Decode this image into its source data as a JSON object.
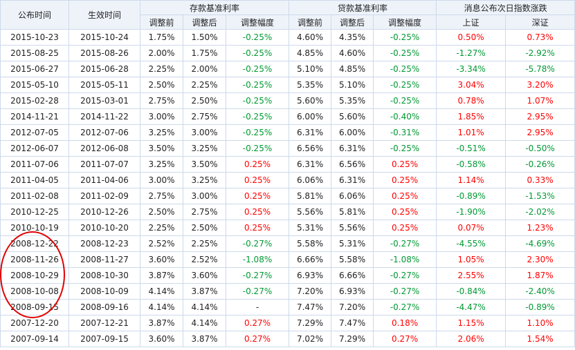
{
  "headers": {
    "announce_date": "公布时间",
    "effective_date": "生效时间",
    "deposit_group": "存款基准利率",
    "loan_group": "贷款基准利率",
    "index_group": "消息公布次日指数涨跌",
    "before": "调整前",
    "after": "调整后",
    "change": "调整幅度",
    "shanghai": "上证",
    "shenzhen": "深证"
  },
  "rows": [
    {
      "announce": "2015-10-23",
      "effective": "2015-10-24",
      "dep_before": "1.75%",
      "dep_after": "1.50%",
      "dep_change": "-0.25%",
      "loan_before": "4.60%",
      "loan_after": "4.35%",
      "loan_change": "-0.25%",
      "sh": "0.50%",
      "sz": "0.73%"
    },
    {
      "announce": "2015-08-25",
      "effective": "2015-08-26",
      "dep_before": "2.00%",
      "dep_after": "1.75%",
      "dep_change": "-0.25%",
      "loan_before": "4.85%",
      "loan_after": "4.60%",
      "loan_change": "-0.25%",
      "sh": "-1.27%",
      "sz": "-2.92%"
    },
    {
      "announce": "2015-06-27",
      "effective": "2015-06-28",
      "dep_before": "2.25%",
      "dep_after": "2.00%",
      "dep_change": "-0.25%",
      "loan_before": "5.10%",
      "loan_after": "4.85%",
      "loan_change": "-0.25%",
      "sh": "-3.34%",
      "sz": "-5.78%"
    },
    {
      "announce": "2015-05-10",
      "effective": "2015-05-11",
      "dep_before": "2.50%",
      "dep_after": "2.25%",
      "dep_change": "-0.25%",
      "loan_before": "5.35%",
      "loan_after": "5.10%",
      "loan_change": "-0.25%",
      "sh": "3.04%",
      "sz": "3.20%"
    },
    {
      "announce": "2015-02-28",
      "effective": "2015-03-01",
      "dep_before": "2.75%",
      "dep_after": "2.50%",
      "dep_change": "-0.25%",
      "loan_before": "5.60%",
      "loan_after": "5.35%",
      "loan_change": "-0.25%",
      "sh": "0.78%",
      "sz": "1.07%"
    },
    {
      "announce": "2014-11-21",
      "effective": "2014-11-22",
      "dep_before": "3.00%",
      "dep_after": "2.75%",
      "dep_change": "-0.25%",
      "loan_before": "6.00%",
      "loan_after": "5.60%",
      "loan_change": "-0.40%",
      "sh": "1.85%",
      "sz": "2.95%"
    },
    {
      "announce": "2012-07-05",
      "effective": "2012-07-06",
      "dep_before": "3.25%",
      "dep_after": "3.00%",
      "dep_change": "-0.25%",
      "loan_before": "6.31%",
      "loan_after": "6.00%",
      "loan_change": "-0.31%",
      "sh": "1.01%",
      "sz": "2.95%"
    },
    {
      "announce": "2012-06-07",
      "effective": "2012-06-08",
      "dep_before": "3.50%",
      "dep_after": "3.25%",
      "dep_change": "-0.25%",
      "loan_before": "6.56%",
      "loan_after": "6.31%",
      "loan_change": "-0.25%",
      "sh": "-0.51%",
      "sz": "-0.50%"
    },
    {
      "announce": "2011-07-06",
      "effective": "2011-07-07",
      "dep_before": "3.25%",
      "dep_after": "3.50%",
      "dep_change": "0.25%",
      "loan_before": "6.31%",
      "loan_after": "6.56%",
      "loan_change": "0.25%",
      "sh": "-0.58%",
      "sz": "-0.26%"
    },
    {
      "announce": "2011-04-05",
      "effective": "2011-04-06",
      "dep_before": "3.00%",
      "dep_after": "3.25%",
      "dep_change": "0.25%",
      "loan_before": "6.06%",
      "loan_after": "6.31%",
      "loan_change": "0.25%",
      "sh": "1.14%",
      "sz": "0.33%"
    },
    {
      "announce": "2011-02-08",
      "effective": "2011-02-09",
      "dep_before": "2.75%",
      "dep_after": "3.00%",
      "dep_change": "0.25%",
      "loan_before": "5.81%",
      "loan_after": "6.06%",
      "loan_change": "0.25%",
      "sh": "-0.89%",
      "sz": "-1.53%"
    },
    {
      "announce": "2010-12-25",
      "effective": "2010-12-26",
      "dep_before": "2.50%",
      "dep_after": "2.75%",
      "dep_change": "0.25%",
      "loan_before": "5.56%",
      "loan_after": "5.81%",
      "loan_change": "0.25%",
      "sh": "-1.90%",
      "sz": "-2.02%"
    },
    {
      "announce": "2010-10-19",
      "effective": "2010-10-20",
      "dep_before": "2.25%",
      "dep_after": "2.50%",
      "dep_change": "0.25%",
      "loan_before": "5.31%",
      "loan_after": "5.56%",
      "loan_change": "0.25%",
      "sh": "0.07%",
      "sz": "1.23%"
    },
    {
      "announce": "2008-12-22",
      "effective": "2008-12-23",
      "dep_before": "2.52%",
      "dep_after": "2.25%",
      "dep_change": "-0.27%",
      "loan_before": "5.58%",
      "loan_after": "5.31%",
      "loan_change": "-0.27%",
      "sh": "-4.55%",
      "sz": "-4.69%"
    },
    {
      "announce": "2008-11-26",
      "effective": "2008-11-27",
      "dep_before": "3.60%",
      "dep_after": "2.52%",
      "dep_change": "-1.08%",
      "loan_before": "6.66%",
      "loan_after": "5.58%",
      "loan_change": "-1.08%",
      "sh": "1.05%",
      "sz": "2.30%"
    },
    {
      "announce": "2008-10-29",
      "effective": "2008-10-30",
      "dep_before": "3.87%",
      "dep_after": "3.60%",
      "dep_change": "-0.27%",
      "loan_before": "6.93%",
      "loan_after": "6.66%",
      "loan_change": "-0.27%",
      "sh": "2.55%",
      "sz": "1.87%"
    },
    {
      "announce": "2008-10-08",
      "effective": "2008-10-09",
      "dep_before": "4.14%",
      "dep_after": "3.87%",
      "dep_change": "-0.27%",
      "loan_before": "7.20%",
      "loan_after": "6.93%",
      "loan_change": "-0.27%",
      "sh": "-0.84%",
      "sz": "-2.40%"
    },
    {
      "announce": "2008-09-15",
      "effective": "2008-09-16",
      "dep_before": "4.14%",
      "dep_after": "4.14%",
      "dep_change": "-",
      "loan_before": "7.47%",
      "loan_after": "7.20%",
      "loan_change": "-0.27%",
      "sh": "-4.47%",
      "sz": "-0.89%"
    },
    {
      "announce": "2007-12-20",
      "effective": "2007-12-21",
      "dep_before": "3.87%",
      "dep_after": "4.14%",
      "dep_change": "0.27%",
      "loan_before": "7.29%",
      "loan_after": "7.47%",
      "loan_change": "0.18%",
      "sh": "1.15%",
      "sz": "1.10%"
    },
    {
      "announce": "2007-09-14",
      "effective": "2007-09-15",
      "dep_before": "3.60%",
      "dep_after": "3.87%",
      "dep_change": "0.27%",
      "loan_before": "7.02%",
      "loan_after": "7.29%",
      "loan_change": "0.27%",
      "sh": "2.06%",
      "sz": "1.54%"
    }
  ],
  "colors": {
    "positive": "#ff0000",
    "negative": "#009933",
    "header_bg": "#eef3fa",
    "border": "#cdd9ea",
    "annotation_circle": "#e00000"
  }
}
